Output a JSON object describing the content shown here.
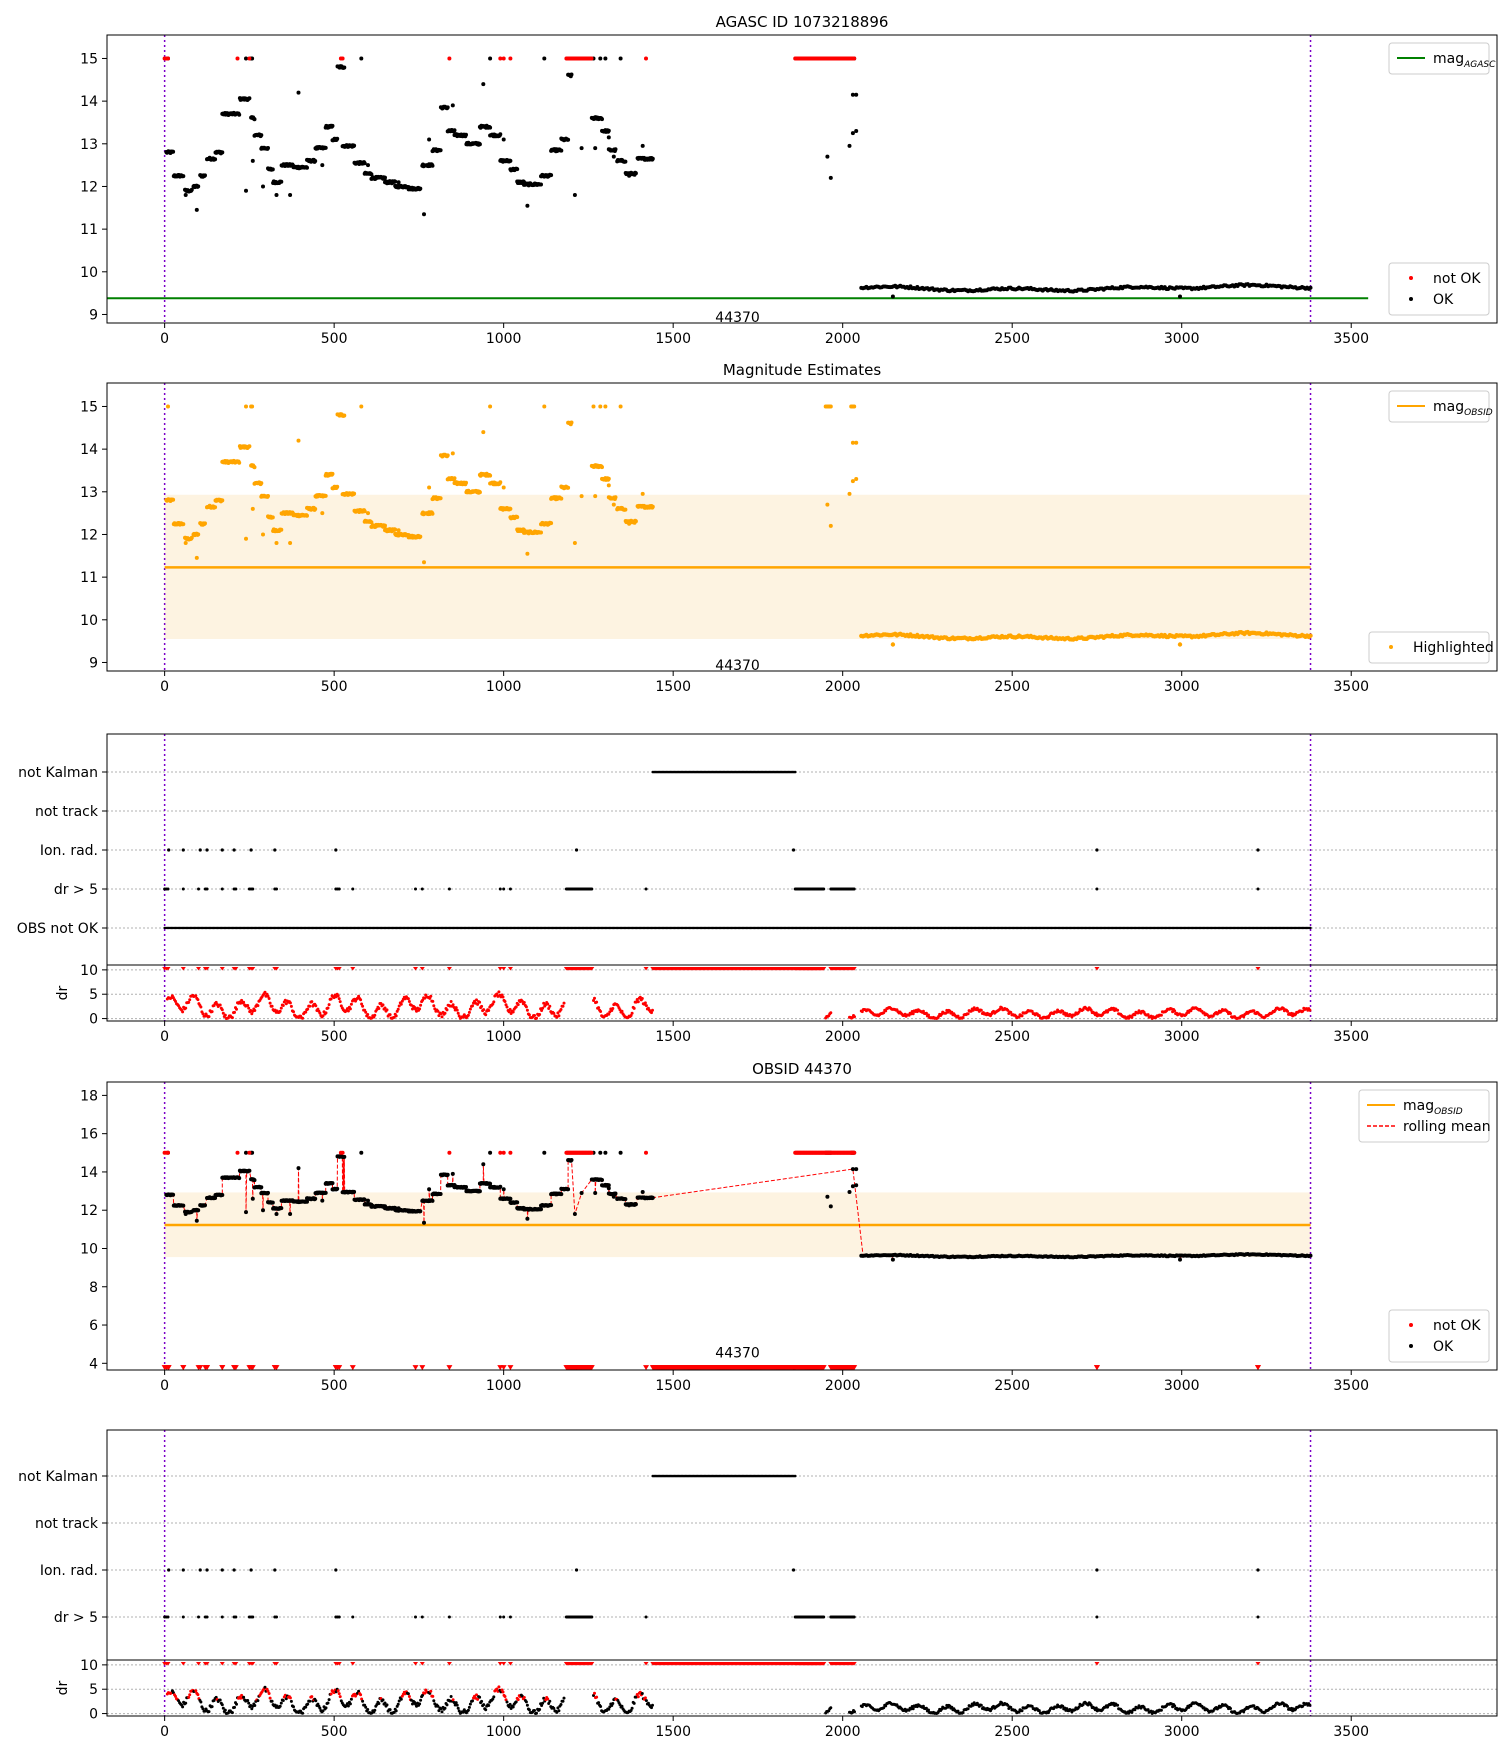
{
  "figure": {
    "obsid_label": "44370"
  },
  "chart_data": [
    {
      "type": "scatter",
      "panel": "agasc",
      "title": "AGASC ID 1073218896",
      "xlim": [
        -170,
        3930
      ],
      "ylim": [
        8.8,
        15.55
      ],
      "xticks": [
        0,
        500,
        1000,
        1500,
        2000,
        2500,
        3000,
        3500
      ],
      "yticks": [
        9,
        10,
        11,
        12,
        13,
        14,
        15
      ],
      "vlines": [
        0,
        3380
      ],
      "hline": {
        "y": 9.38,
        "xmax": 3550,
        "color": "#008000"
      },
      "legend_top": [
        {
          "label": "mag",
          "sub": "AGASC",
          "kind": "line",
          "color": "#008000"
        }
      ],
      "legend_bottom": [
        {
          "label": "not OK",
          "kind": "dot",
          "color": "#ff0000"
        },
        {
          "label": "OK",
          "kind": "dot",
          "color": "#000000"
        }
      ]
    },
    {
      "type": "scatter",
      "panel": "estimates",
      "title": "Magnitude Estimates",
      "xlim": [
        -170,
        3930
      ],
      "ylim": [
        8.8,
        15.55
      ],
      "xticks": [
        0,
        500,
        1000,
        1500,
        2000,
        2500,
        3000,
        3500
      ],
      "yticks": [
        9,
        10,
        11,
        12,
        13,
        14,
        15
      ],
      "vlines": [
        0,
        3380
      ],
      "band": {
        "y0": 9.55,
        "y1": 12.93,
        "x0": 0,
        "x1": 3380,
        "color": "#fdf3e1"
      },
      "hline": {
        "y": 11.23,
        "xmin": 0,
        "xmax": 3380,
        "color": "#ffa500"
      },
      "legend_top": [
        {
          "label": "mag",
          "sub": "OBSID",
          "kind": "line",
          "color": "#ffa500"
        }
      ],
      "legend_bottom": [
        {
          "label": "Highlighted",
          "kind": "dot",
          "color": "#ffa500"
        }
      ]
    },
    {
      "type": "scatter",
      "panel": "flags1",
      "xlim": [
        -170,
        3930
      ],
      "categories": [
        "not Kalman",
        "not track",
        "Ion. rad.",
        "dr > 5",
        "OBS not OK"
      ],
      "vlines": [
        0,
        3380
      ]
    },
    {
      "type": "scatter",
      "panel": "dr1",
      "xlim": [
        -170,
        3930
      ],
      "ylabel": "dr",
      "ylim": [
        -0.5,
        11
      ],
      "yticks": [
        0,
        5,
        10
      ],
      "xticks": [
        0,
        500,
        1000,
        1500,
        2000,
        2500,
        3000,
        3500
      ],
      "vlines": [
        0,
        3380
      ]
    },
    {
      "type": "scatter",
      "panel": "obsid",
      "title": "OBSID 44370",
      "xlim": [
        -170,
        3930
      ],
      "ylim": [
        3.65,
        18.7
      ],
      "xticks": [
        0,
        500,
        1000,
        1500,
        2000,
        2500,
        3000,
        3500
      ],
      "yticks": [
        4,
        6,
        8,
        10,
        12,
        14,
        16,
        18
      ],
      "vlines": [
        0,
        3380
      ],
      "band": {
        "y0": 9.55,
        "y1": 12.93,
        "x0": 0,
        "x1": 3380,
        "color": "#fdf3e1"
      },
      "hline": {
        "y": 11.23,
        "xmin": 0,
        "xmax": 3380,
        "color": "#ffa500"
      },
      "legend_top": [
        {
          "label": "mag",
          "sub": "OBSID",
          "kind": "line",
          "color": "#ffa500"
        },
        {
          "label": "rolling mean",
          "kind": "dash",
          "color": "#ff0000"
        }
      ],
      "legend_bottom": [
        {
          "label": "not OK",
          "kind": "dot",
          "color": "#ff0000"
        },
        {
          "label": "OK",
          "kind": "dot",
          "color": "#000000"
        }
      ]
    },
    {
      "type": "scatter",
      "panel": "flags2",
      "xlim": [
        -170,
        3930
      ],
      "categories": [
        "not Kalman",
        "not track",
        "Ion. rad.",
        "dr > 5"
      ],
      "vlines": [
        0,
        3380
      ]
    },
    {
      "type": "scatter",
      "panel": "dr2",
      "xlim": [
        -170,
        3930
      ],
      "ylabel": "dr",
      "ylim": [
        -0.5,
        11
      ],
      "yticks": [
        0,
        5,
        10
      ],
      "xticks": [
        0,
        500,
        1000,
        1500,
        2000,
        2500,
        3000,
        3500
      ],
      "vlines": [
        0,
        3380
      ]
    }
  ]
}
